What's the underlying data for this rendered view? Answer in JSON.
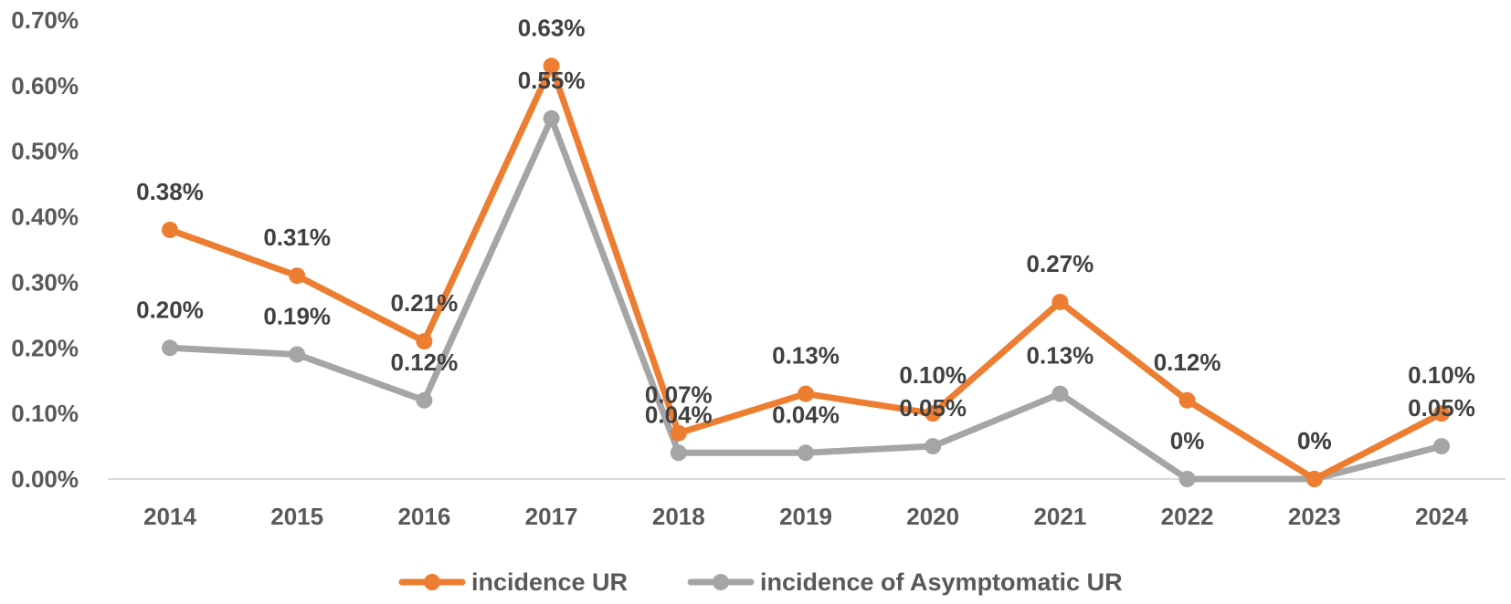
{
  "chart_data": {
    "type": "line",
    "categories": [
      "2014",
      "2015",
      "2016",
      "2017",
      "2018",
      "2019",
      "2020",
      "2021",
      "2022",
      "2023",
      "2024"
    ],
    "ylim": [
      0,
      0.7
    ],
    "y_ticks": [
      "0.00%",
      "0.10%",
      "0.20%",
      "0.30%",
      "0.40%",
      "0.50%",
      "0.60%",
      "0.70%"
    ],
    "y_tick_values": [
      0,
      0.1,
      0.2,
      0.3,
      0.4,
      0.5,
      0.6,
      0.7
    ],
    "grid": false,
    "legend_position": "bottom",
    "series": [
      {
        "name": "incidence  UR",
        "color": "#ED7D31",
        "values": [
          0.38,
          0.31,
          0.21,
          0.63,
          0.07,
          0.13,
          0.1,
          0.27,
          0.12,
          0,
          0.1
        ],
        "labels": [
          "0.38%",
          "0.31%",
          "0.21%",
          "0.63%",
          "0.07%",
          "0.13%",
          "0.10%",
          "0.27%",
          "0.12%",
          "0%",
          "0.10%"
        ]
      },
      {
        "name": "incidence of  Asymptomatic UR",
        "color": "#A5A5A5",
        "values": [
          0.2,
          0.19,
          0.12,
          0.55,
          0.04,
          0.04,
          0.05,
          0.13,
          0,
          0,
          0.05
        ],
        "labels": [
          "0.20%",
          "0.19%",
          "0.12%",
          "0.55%",
          "0.04%",
          "0.04%",
          "0.05%",
          "0.13%",
          "0%",
          "0%",
          "0.05%"
        ]
      }
    ]
  }
}
